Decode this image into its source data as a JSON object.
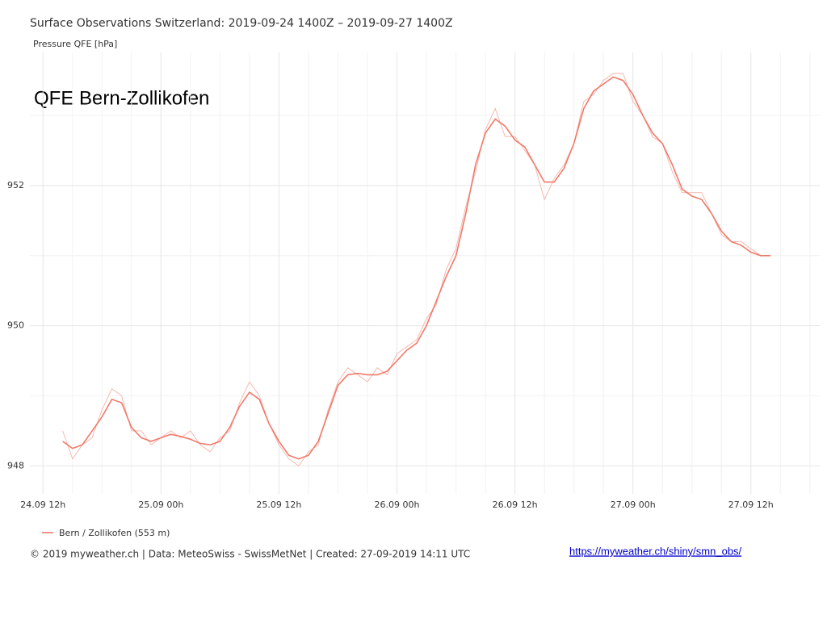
{
  "chart_data": {
    "type": "line",
    "title": "Surface Observations Switzerland: 2019-09-24 1400Z – 2019-09-27 1400Z",
    "y_label": "Pressure QFE [hPa]",
    "annotation": "QFE Bern-Zollikofen",
    "caption": "© 2019 myweather.ch | Data: MeteoSwiss - SwissMetNet | Created: 27-09-2019 14:11 UTC",
    "link": "https://myweather.ch/shiny/smn_obs/",
    "grid": true,
    "legend": "bottom",
    "x": [
      "2019-09-24T14:00",
      "2019-09-24T15:00",
      "2019-09-24T16:00",
      "2019-09-24T17:00",
      "2019-09-24T18:00",
      "2019-09-24T19:00",
      "2019-09-24T20:00",
      "2019-09-24T21:00",
      "2019-09-24T22:00",
      "2019-09-24T23:00",
      "2019-09-25T00:00",
      "2019-09-25T01:00",
      "2019-09-25T02:00",
      "2019-09-25T03:00",
      "2019-09-25T04:00",
      "2019-09-25T05:00",
      "2019-09-25T06:00",
      "2019-09-25T07:00",
      "2019-09-25T08:00",
      "2019-09-25T09:00",
      "2019-09-25T10:00",
      "2019-09-25T11:00",
      "2019-09-25T12:00",
      "2019-09-25T13:00",
      "2019-09-25T14:00",
      "2019-09-25T15:00",
      "2019-09-25T16:00",
      "2019-09-25T17:00",
      "2019-09-25T18:00",
      "2019-09-25T19:00",
      "2019-09-25T20:00",
      "2019-09-25T21:00",
      "2019-09-25T22:00",
      "2019-09-25T23:00",
      "2019-09-26T00:00",
      "2019-09-26T01:00",
      "2019-09-26T02:00",
      "2019-09-26T03:00",
      "2019-09-26T04:00",
      "2019-09-26T05:00",
      "2019-09-26T06:00",
      "2019-09-26T07:00",
      "2019-09-26T08:00",
      "2019-09-26T09:00",
      "2019-09-26T10:00",
      "2019-09-26T11:00",
      "2019-09-26T12:00",
      "2019-09-26T13:00",
      "2019-09-26T14:00",
      "2019-09-26T15:00",
      "2019-09-26T16:00",
      "2019-09-26T17:00",
      "2019-09-26T18:00",
      "2019-09-26T19:00",
      "2019-09-26T20:00",
      "2019-09-26T21:00",
      "2019-09-26T22:00",
      "2019-09-26T23:00",
      "2019-09-27T00:00",
      "2019-09-27T01:00",
      "2019-09-27T02:00",
      "2019-09-27T03:00",
      "2019-09-27T04:00",
      "2019-09-27T05:00",
      "2019-09-27T06:00",
      "2019-09-27T07:00",
      "2019-09-27T08:00",
      "2019-09-27T09:00",
      "2019-09-27T10:00",
      "2019-09-27T11:00",
      "2019-09-27T12:00",
      "2019-09-27T13:00",
      "2019-09-27T14:00"
    ],
    "series": [
      {
        "name": "Bern / Zollikofen (553 m)",
        "color": "#f07a6a",
        "values": [
          948.35,
          948.25,
          948.3,
          948.5,
          948.7,
          948.95,
          948.9,
          948.55,
          948.4,
          948.35,
          948.4,
          948.45,
          948.42,
          948.38,
          948.32,
          948.3,
          948.35,
          948.55,
          948.85,
          949.05,
          948.95,
          948.6,
          948.35,
          948.15,
          948.1,
          948.15,
          948.35,
          948.75,
          949.15,
          949.3,
          949.32,
          949.3,
          949.3,
          949.35,
          949.5,
          949.65,
          949.75,
          950.0,
          950.35,
          950.7,
          951.0,
          951.6,
          952.3,
          952.75,
          952.95,
          952.85,
          952.65,
          952.55,
          952.3,
          952.05,
          952.05,
          952.25,
          952.6,
          953.1,
          953.35,
          953.45,
          953.55,
          953.5,
          953.3,
          953.0,
          952.75,
          952.6,
          952.3,
          951.95,
          951.85,
          951.8,
          951.6,
          951.35,
          951.2,
          951.15,
          951.05,
          951.0,
          951.0
        ]
      },
      {
        "color": "#f5b2a9",
        "values": [
          948.5,
          948.1,
          948.3,
          948.4,
          948.8,
          949.1,
          949.0,
          948.5,
          948.5,
          948.3,
          948.4,
          948.5,
          948.4,
          948.5,
          948.3,
          948.2,
          948.4,
          948.5,
          948.9,
          949.2,
          949.0,
          948.6,
          948.3,
          948.1,
          948.0,
          948.2,
          948.3,
          948.8,
          949.2,
          949.4,
          949.3,
          949.2,
          949.4,
          949.3,
          949.6,
          949.7,
          949.8,
          950.1,
          950.3,
          950.8,
          951.1,
          951.7,
          952.2,
          952.8,
          953.1,
          952.7,
          952.7,
          952.5,
          952.3,
          951.8,
          952.1,
          952.3,
          952.6,
          953.2,
          953.3,
          953.5,
          953.6,
          953.6,
          953.2,
          953.0,
          952.7,
          952.6,
          952.2,
          951.9,
          951.9,
          951.9,
          951.6,
          951.3,
          951.2,
          951.2,
          951.1,
          951.0,
          951.0
        ]
      }
    ],
    "xlim": [
      "2019-09-24T10:40",
      "2019-09-27T19:00"
    ],
    "xticks": [
      {
        "value": "2019-09-24T12:00",
        "label": "24.09 12h"
      },
      {
        "value": "2019-09-25T00:00",
        "label": "25.09 00h"
      },
      {
        "value": "2019-09-25T12:00",
        "label": "25.09 12h"
      },
      {
        "value": "2019-09-26T00:00",
        "label": "26.09 00h"
      },
      {
        "value": "2019-09-26T12:00",
        "label": "26.09 12h"
      },
      {
        "value": "2019-09-27T00:00",
        "label": "27.09 00h"
      },
      {
        "value": "2019-09-27T12:00",
        "label": "27.09 12h"
      }
    ],
    "ylim": [
      947.6,
      953.9
    ],
    "yticks": [
      948,
      950,
      952
    ]
  }
}
